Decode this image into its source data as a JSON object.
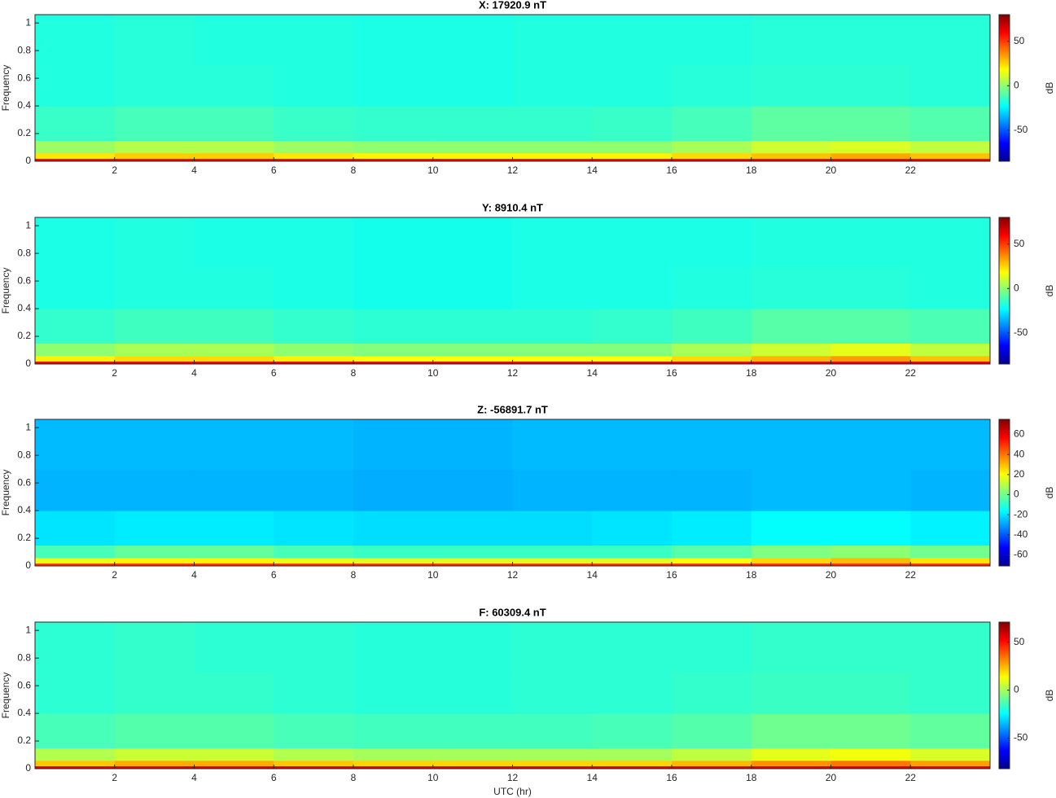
{
  "chart_data": [
    {
      "type": "heatmap",
      "title": "X: 17920.9 nT",
      "ylabel": "Frequency",
      "colormap": "jet",
      "x_bins": [
        0,
        2,
        4,
        6,
        8,
        10,
        12,
        14,
        16,
        18,
        20,
        22,
        24
      ],
      "y_bins": [
        0,
        0.02,
        0.06,
        0.15,
        0.4,
        0.7,
        1.06
      ],
      "values": [
        [
          62,
          62,
          62,
          62,
          62,
          62,
          62,
          62,
          62,
          62,
          62,
          62
        ],
        [
          22,
          26,
          26,
          22,
          20,
          20,
          20,
          20,
          24,
          28,
          32,
          28
        ],
        [
          2,
          6,
          6,
          2,
          0,
          0,
          0,
          0,
          4,
          10,
          12,
          8
        ],
        [
          -14,
          -12,
          -12,
          -14,
          -15,
          -15,
          -15,
          -14,
          -12,
          -8,
          -8,
          -10
        ],
        [
          -18,
          -17,
          -17,
          -18,
          -19,
          -19,
          -18,
          -18,
          -17,
          -16,
          -16,
          -17
        ],
        [
          -18,
          -17,
          -18,
          -18,
          -19,
          -19,
          -18,
          -18,
          -18,
          -17,
          -17,
          -17
        ]
      ],
      "xlim": [
        0,
        24
      ],
      "xticks": [
        2,
        4,
        6,
        8,
        10,
        12,
        14,
        16,
        18,
        20,
        22
      ],
      "ylim": [
        0,
        1.06
      ],
      "yticks": [
        0,
        0.2,
        0.4,
        0.6,
        0.8,
        1
      ],
      "colorbar": {
        "label": "dB",
        "lim": [
          -85,
          80
        ],
        "ticks": [
          -50,
          0,
          50
        ]
      }
    },
    {
      "type": "heatmap",
      "title": "Y: 8910.4 nT",
      "ylabel": "Frequency",
      "colormap": "jet",
      "x_bins": [
        0,
        2,
        4,
        6,
        8,
        10,
        12,
        14,
        16,
        18,
        20,
        22,
        24
      ],
      "y_bins": [
        0,
        0.02,
        0.06,
        0.15,
        0.4,
        0.7,
        1.06
      ],
      "values": [
        [
          62,
          62,
          62,
          62,
          62,
          62,
          62,
          62,
          62,
          62,
          62,
          62
        ],
        [
          20,
          24,
          24,
          20,
          18,
          18,
          18,
          18,
          24,
          30,
          34,
          28
        ],
        [
          0,
          4,
          4,
          0,
          -2,
          -2,
          -2,
          -2,
          4,
          10,
          14,
          8
        ],
        [
          -15,
          -13,
          -13,
          -15,
          -16,
          -16,
          -16,
          -15,
          -13,
          -9,
          -9,
          -11
        ],
        [
          -19,
          -18,
          -18,
          -19,
          -20,
          -20,
          -19,
          -19,
          -18,
          -17,
          -17,
          -18
        ],
        [
          -19,
          -18,
          -19,
          -19,
          -20,
          -20,
          -19,
          -19,
          -19,
          -18,
          -18,
          -18
        ]
      ],
      "xlim": [
        0,
        24
      ],
      "xticks": [
        2,
        4,
        6,
        8,
        10,
        12,
        14,
        16,
        18,
        20,
        22
      ],
      "ylim": [
        0,
        1.06
      ],
      "yticks": [
        0,
        0.2,
        0.4,
        0.6,
        0.8,
        1
      ],
      "colorbar": {
        "label": "dB",
        "lim": [
          -85,
          80
        ],
        "ticks": [
          -50,
          0,
          50
        ]
      }
    },
    {
      "type": "heatmap",
      "title": "Z: -56891.7 nT",
      "ylabel": "Frequency",
      "colormap": "jet",
      "x_bins": [
        0,
        2,
        4,
        6,
        8,
        10,
        12,
        14,
        16,
        18,
        20,
        22,
        24
      ],
      "y_bins": [
        0,
        0.02,
        0.06,
        0.15,
        0.4,
        0.7,
        1.06
      ],
      "values": [
        [
          50,
          50,
          50,
          50,
          50,
          50,
          50,
          50,
          50,
          50,
          50,
          50
        ],
        [
          18,
          22,
          22,
          18,
          16,
          16,
          16,
          16,
          20,
          26,
          30,
          24
        ],
        [
          -6,
          -2,
          -2,
          -6,
          -8,
          -8,
          -8,
          -8,
          -4,
          2,
          4,
          0
        ],
        [
          -20,
          -19,
          -19,
          -20,
          -21,
          -21,
          -21,
          -20,
          -19,
          -16,
          -16,
          -18
        ],
        [
          -27,
          -27,
          -27,
          -27,
          -28,
          -28,
          -27,
          -27,
          -27,
          -26,
          -26,
          -27
        ],
        [
          -26,
          -26,
          -26,
          -26,
          -27,
          -27,
          -26,
          -26,
          -26,
          -26,
          -26,
          -26
        ]
      ],
      "xlim": [
        0,
        24
      ],
      "xticks": [
        2,
        4,
        6,
        8,
        10,
        12,
        14,
        16,
        18,
        20,
        22
      ],
      "ylim": [
        0,
        1.06
      ],
      "yticks": [
        0,
        0.2,
        0.4,
        0.6,
        0.8,
        1
      ],
      "colorbar": {
        "label": "dB",
        "lim": [
          -71,
          75
        ],
        "ticks": [
          -60,
          -40,
          -20,
          0,
          20,
          40,
          60
        ]
      }
    },
    {
      "type": "heatmap",
      "title": "F: 60309.4 nT",
      "ylabel": "Frequency",
      "xlabel": "UTC (hr)",
      "colormap": "jet",
      "x_bins": [
        0,
        2,
        4,
        6,
        8,
        10,
        12,
        14,
        16,
        18,
        20,
        22,
        24
      ],
      "y_bins": [
        0,
        0.02,
        0.06,
        0.15,
        0.4,
        0.7,
        1.06
      ],
      "values": [
        [
          58,
          58,
          58,
          58,
          58,
          58,
          58,
          58,
          58,
          58,
          58,
          58
        ],
        [
          22,
          26,
          26,
          22,
          20,
          20,
          20,
          20,
          24,
          30,
          34,
          28
        ],
        [
          2,
          6,
          6,
          2,
          0,
          0,
          0,
          0,
          4,
          10,
          12,
          8
        ],
        [
          -14,
          -12,
          -12,
          -14,
          -15,
          -15,
          -15,
          -14,
          -12,
          -8,
          -8,
          -10
        ],
        [
          -18,
          -17,
          -17,
          -18,
          -19,
          -19,
          -18,
          -18,
          -17,
          -16,
          -16,
          -17
        ],
        [
          -18,
          -17,
          -18,
          -18,
          -19,
          -19,
          -18,
          -18,
          -18,
          -17,
          -17,
          -17
        ]
      ],
      "xlim": [
        0,
        24
      ],
      "xticks": [
        2,
        4,
        6,
        8,
        10,
        12,
        14,
        16,
        18,
        20,
        22
      ],
      "ylim": [
        0,
        1.06
      ],
      "yticks": [
        0,
        0.2,
        0.4,
        0.6,
        0.8,
        1
      ],
      "colorbar": {
        "label": "dB",
        "lim": [
          -82,
          71
        ],
        "ticks": [
          -50,
          0,
          50
        ]
      }
    }
  ]
}
